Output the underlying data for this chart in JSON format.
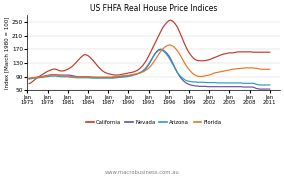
{
  "title": "US FHFA Real House Price Indices",
  "ylabel": "Index [March 1980 = 100]",
  "watermark": "www.macrobusiness.com.au",
  "ylim": [
    50,
    270
  ],
  "yticks": [
    50,
    90,
    130,
    170,
    210,
    250
  ],
  "legend": [
    "California",
    "Nevada",
    "Arizona",
    "Florida"
  ],
  "colors": {
    "California": "#c0392b",
    "Nevada": "#6a4fa0",
    "Arizona": "#2e9bbf",
    "Florida": "#e07820"
  },
  "xtick_years": [
    1975,
    1978,
    1981,
    1984,
    1987,
    1990,
    1993,
    1996,
    1999,
    2002,
    2005,
    2008,
    2011
  ],
  "series_start_year": 1975.25,
  "california": [
    70,
    72,
    76,
    80,
    84,
    88,
    91,
    94,
    97,
    100,
    103,
    106,
    108,
    110,
    112,
    113,
    112,
    110,
    108,
    107,
    107,
    108,
    110,
    112,
    115,
    118,
    122,
    127,
    132,
    138,
    143,
    148,
    152,
    155,
    154,
    152,
    148,
    143,
    138,
    132,
    126,
    120,
    115,
    110,
    106,
    103,
    101,
    99,
    98,
    97,
    96,
    95,
    95,
    95,
    96,
    97,
    98,
    99,
    100,
    101,
    102,
    103,
    104,
    106,
    108,
    111,
    115,
    120,
    126,
    133,
    141,
    150,
    160,
    170,
    180,
    190,
    200,
    210,
    220,
    230,
    238,
    244,
    250,
    254,
    256,
    254,
    250,
    244,
    236,
    226,
    215,
    203,
    191,
    180,
    170,
    161,
    154,
    148,
    143,
    140,
    138,
    137,
    137,
    137,
    137,
    138,
    139,
    140,
    142,
    144,
    146,
    148,
    150,
    152,
    154,
    156,
    157,
    158,
    159,
    160,
    160,
    160,
    161,
    162,
    163,
    163,
    163,
    163,
    163,
    163,
    163,
    163,
    163,
    162,
    162,
    162,
    162,
    162,
    162,
    162,
    162,
    162,
    162,
    162
  ],
  "nevada": [
    85,
    86,
    87,
    88,
    88,
    89,
    89,
    90,
    91,
    92,
    93,
    94,
    95,
    96,
    96,
    96,
    96,
    95,
    95,
    95,
    95,
    95,
    95,
    95,
    95,
    94,
    93,
    92,
    91,
    90,
    90,
    90,
    90,
    90,
    90,
    90,
    90,
    89,
    89,
    88,
    88,
    88,
    88,
    88,
    88,
    88,
    88,
    88,
    88,
    88,
    88,
    89,
    89,
    90,
    90,
    91,
    91,
    92,
    92,
    93,
    94,
    95,
    96,
    97,
    98,
    100,
    102,
    105,
    108,
    112,
    118,
    125,
    133,
    142,
    151,
    159,
    165,
    169,
    171,
    170,
    167,
    163,
    158,
    152,
    144,
    134,
    124,
    113,
    103,
    95,
    88,
    82,
    77,
    73,
    70,
    68,
    66,
    65,
    64,
    63,
    63,
    62,
    62,
    62,
    62,
    62,
    61,
    61,
    61,
    61,
    61,
    61,
    61,
    61,
    61,
    61,
    61,
    61,
    61,
    61,
    61,
    61,
    61,
    61,
    61,
    61,
    61,
    60,
    60,
    60,
    60,
    60,
    60,
    60,
    58,
    56,
    55,
    54,
    54,
    54,
    54,
    54,
    54,
    54
  ],
  "arizona": [
    83,
    84,
    85,
    86,
    86,
    87,
    87,
    88,
    88,
    89,
    90,
    90,
    91,
    92,
    92,
    92,
    92,
    91,
    91,
    90,
    90,
    90,
    90,
    90,
    89,
    89,
    88,
    88,
    87,
    87,
    87,
    87,
    87,
    87,
    87,
    87,
    87,
    86,
    86,
    86,
    86,
    86,
    86,
    86,
    86,
    86,
    86,
    86,
    86,
    86,
    86,
    87,
    87,
    88,
    88,
    89,
    89,
    90,
    90,
    91,
    92,
    93,
    95,
    96,
    98,
    100,
    102,
    105,
    109,
    114,
    120,
    127,
    135,
    143,
    151,
    158,
    163,
    167,
    169,
    168,
    165,
    160,
    154,
    147,
    139,
    130,
    121,
    112,
    104,
    97,
    91,
    87,
    83,
    80,
    78,
    77,
    76,
    75,
    75,
    75,
    74,
    74,
    74,
    74,
    74,
    73,
    73,
    73,
    73,
    73,
    73,
    73,
    72,
    72,
    72,
    72,
    72,
    72,
    72,
    72,
    72,
    72,
    72,
    72,
    72,
    72,
    72,
    71,
    71,
    71,
    71,
    71,
    71,
    71,
    70,
    68,
    67,
    66,
    66,
    66,
    66,
    66,
    66,
    66
  ],
  "florida": [
    86,
    86,
    87,
    88,
    88,
    89,
    89,
    90,
    90,
    91,
    91,
    92,
    93,
    94,
    95,
    95,
    95,
    95,
    95,
    94,
    93,
    92,
    91,
    91,
    91,
    90,
    90,
    90,
    89,
    89,
    89,
    89,
    89,
    89,
    89,
    89,
    89,
    89,
    89,
    89,
    89,
    89,
    89,
    89,
    89,
    89,
    89,
    89,
    89,
    89,
    90,
    90,
    91,
    91,
    92,
    92,
    93,
    93,
    94,
    94,
    95,
    96,
    97,
    98,
    99,
    100,
    101,
    103,
    105,
    108,
    111,
    115,
    120,
    126,
    133,
    140,
    148,
    156,
    163,
    169,
    174,
    178,
    181,
    183,
    183,
    181,
    178,
    173,
    167,
    160,
    152,
    143,
    134,
    126,
    118,
    112,
    106,
    101,
    97,
    94,
    92,
    91,
    91,
    91,
    92,
    93,
    94,
    95,
    97,
    99,
    101,
    102,
    103,
    104,
    105,
    106,
    107,
    108,
    109,
    110,
    111,
    112,
    113,
    113,
    114,
    114,
    115,
    115,
    116,
    116,
    116,
    116,
    116,
    116,
    115,
    115,
    114,
    113,
    112,
    112,
    112,
    112,
    112,
    112
  ]
}
